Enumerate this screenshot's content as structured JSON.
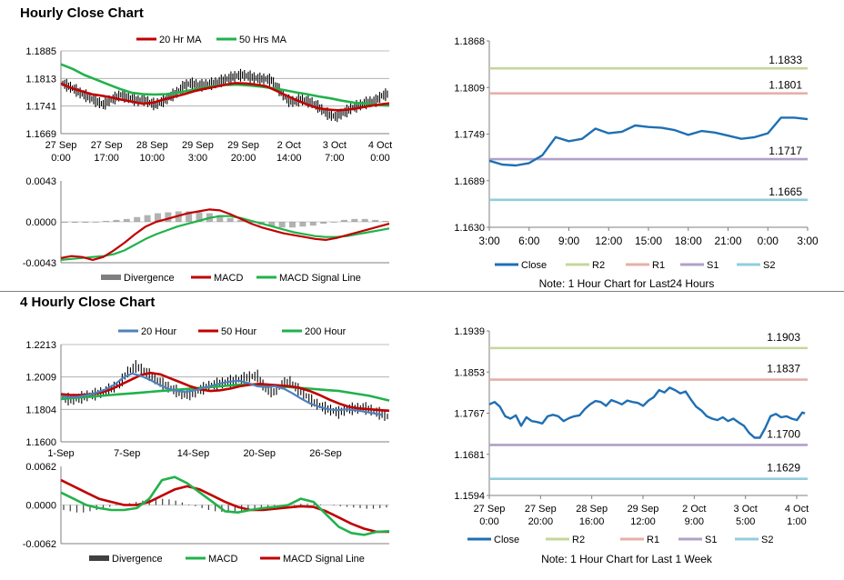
{
  "sections": [
    {
      "title": "Hourly Close Chart"
    },
    {
      "title": "4 Hourly Close Chart"
    }
  ],
  "chart_data": [
    {
      "id": "hourly-price",
      "type": "candlestick",
      "legend": [
        "20 Hr MA",
        "50 Hrs MA"
      ],
      "series_colors": {
        "20 Hr MA": "#c00000",
        "50 Hrs MA": "#21b24b",
        "price": "#000000"
      },
      "yticks": [
        "1.1885",
        "1.1813",
        "1.1741",
        "1.1669"
      ],
      "ylim": [
        1.1669,
        1.1885
      ],
      "xticks": [
        "27 Sep\n0:00",
        "27 Sep\n17:00",
        "28 Sep\n10:00",
        "29 Sep\n3:00",
        "29 Sep\n20:00",
        "2 Oct\n14:00",
        "3 Oct\n7:00",
        "4 Oct\n0:00"
      ],
      "grid": "horizontal",
      "price_y": [
        1.18,
        1.1793,
        1.1785,
        1.1775,
        1.1768,
        1.176,
        1.1752,
        1.1745,
        1.1755,
        1.1762,
        1.177,
        1.1765,
        1.176,
        1.1755,
        1.1758,
        1.175,
        1.1745,
        1.1752,
        1.176,
        1.177,
        1.178,
        1.1795,
        1.18,
        1.1797,
        1.1795,
        1.1798,
        1.18,
        1.1805,
        1.181,
        1.1815,
        1.182,
        1.1822,
        1.1819,
        1.1815,
        1.1812,
        1.1812,
        1.1808,
        1.179,
        1.177,
        1.1755,
        1.1752,
        1.1758,
        1.1755,
        1.175,
        1.174,
        1.1728,
        1.1718,
        1.1714,
        1.172,
        1.1728,
        1.1737,
        1.1742,
        1.1748,
        1.1752,
        1.1755,
        1.1768,
        1.1772
      ],
      "ma20": [
        1.18,
        1.1788,
        1.178,
        1.1772,
        1.1768,
        1.1763,
        1.1757,
        1.1752,
        1.1747,
        1.175,
        1.1758,
        1.1765,
        1.1772,
        1.178,
        1.1786,
        1.1791,
        1.1797,
        1.1801,
        1.18,
        1.1797,
        1.1793,
        1.1781,
        1.1768,
        1.1756,
        1.1745,
        1.1736,
        1.1732,
        1.173,
        1.1732,
        1.1736,
        1.1741,
        1.1745,
        1.1748
      ],
      "ma50": [
        1.185,
        1.1838,
        1.1822,
        1.181,
        1.1798,
        1.1786,
        1.1776,
        1.1772,
        1.1771,
        1.1772,
        1.1776,
        1.1782,
        1.1788,
        1.1793,
        1.1796,
        1.1797,
        1.1795,
        1.1792,
        1.1788,
        1.1783,
        1.1777,
        1.1772,
        1.1766,
        1.1761,
        1.1755,
        1.175,
        1.1747,
        1.1744,
        1.1742
      ]
    },
    {
      "id": "hourly-macd",
      "type": "line",
      "legend": [
        "Divergence",
        "MACD",
        "MACD Signal Line"
      ],
      "series_colors": {
        "Divergence": "#7f7f7f",
        "MACD": "#c00000",
        "MACD Signal Line": "#21b24b"
      },
      "yticks": [
        "0.0043",
        "0.0000",
        "-0.0043"
      ],
      "ylim": [
        -0.0043,
        0.0043
      ],
      "divergence": [
        -0.0001,
        -0.0001,
        -0.0001,
        0.0,
        0.0001,
        0.0002,
        0.0003,
        0.0005,
        0.0007,
        0.0009,
        0.001,
        0.0011,
        0.0011,
        0.001,
        0.0009,
        0.0007,
        0.0004,
        0.0002,
        -0.0001,
        -0.0003,
        -0.0005,
        -0.0006,
        -0.0006,
        -0.0005,
        -0.0004,
        -0.0002,
        0.0,
        0.0002,
        0.0003,
        0.0003,
        0.0002,
        0.0001
      ],
      "macd": [
        -0.0038,
        -0.0036,
        -0.0037,
        -0.004,
        -0.0037,
        -0.003,
        -0.0022,
        -0.0013,
        -0.0005,
        0.0,
        0.0003,
        0.0006,
        0.0009,
        0.0011,
        0.0013,
        0.0012,
        0.0008,
        0.0003,
        -0.0002,
        -0.0006,
        -0.0009,
        -0.0012,
        -0.0014,
        -0.0016,
        -0.0018,
        -0.0019,
        -0.0017,
        -0.0014,
        -0.0011,
        -0.0008,
        -0.0005,
        -0.0002
      ],
      "signal": [
        -0.004,
        -0.0039,
        -0.0038,
        -0.0037,
        -0.0036,
        -0.0034,
        -0.003,
        -0.0024,
        -0.0018,
        -0.0013,
        -0.0009,
        -0.0005,
        -0.0002,
        0.0001,
        0.0004,
        0.0006,
        0.0006,
        0.0004,
        0.0001,
        -0.0002,
        -0.0005,
        -0.0008,
        -0.0011,
        -0.0013,
        -0.0015,
        -0.0016,
        -0.0016,
        -0.0015,
        -0.0013,
        -0.0011,
        -0.0009,
        -0.0007
      ]
    },
    {
      "id": "hourly-levels",
      "type": "line",
      "legend": [
        "Close",
        "R2",
        "R1",
        "S1",
        "S2"
      ],
      "series_colors": {
        "Close": "#1f6fb4",
        "R2": "#c4d79b",
        "R1": "#e6b0a9",
        "S1": "#b1a0c7",
        "S2": "#92cddc"
      },
      "yticks": [
        "1.1868",
        "1.1809",
        "1.1749",
        "1.1689",
        "1.1630"
      ],
      "ylim": [
        1.163,
        1.1868
      ],
      "xticks": [
        "3:00",
        "6:00",
        "9:00",
        "12:00",
        "15:00",
        "18:00",
        "21:00",
        "0:00",
        "3:00"
      ],
      "x": [
        0,
        1,
        2,
        3,
        4,
        5,
        6,
        7,
        8,
        9,
        10,
        11,
        12,
        13,
        14,
        15,
        16,
        17,
        18,
        19,
        20,
        21,
        22,
        23,
        24
      ],
      "close": [
        1.1715,
        1.171,
        1.1709,
        1.1712,
        1.1722,
        1.1745,
        1.174,
        1.1743,
        1.1756,
        1.175,
        1.1752,
        1.176,
        1.1758,
        1.1757,
        1.1754,
        1.1748,
        1.1753,
        1.1751,
        1.1747,
        1.1743,
        1.1745,
        1.175,
        1.177,
        1.177,
        1.1768
      ],
      "levels": [
        {
          "name": "R2",
          "value": 1.1833,
          "label": "1.1833"
        },
        {
          "name": "R1",
          "value": 1.1801,
          "label": "1.1801"
        },
        {
          "name": "S1",
          "value": 1.1717,
          "label": "1.1717"
        },
        {
          "name": "S2",
          "value": 1.1665,
          "label": "1.1665"
        }
      ],
      "note": "Note: 1 Hour Chart for Last24 Hours"
    },
    {
      "id": "four-hourly-price",
      "type": "candlestick",
      "legend": [
        "20 Hour",
        "50 Hour",
        "200 Hour"
      ],
      "series_colors": {
        "20 Hour": "#4f81bd",
        "50 Hour": "#c00000",
        "200 Hour": "#21b24b",
        "price": "#000000"
      },
      "yticks": [
        "1.2213",
        "1.2009",
        "1.1804",
        "1.1600"
      ],
      "ylim": [
        1.16,
        1.2213
      ],
      "xticks": [
        "1-Sep",
        "7-Sep",
        "14-Sep",
        "20-Sep",
        "26-Sep"
      ],
      "grid": "horizontal",
      "price_y": [
        1.188,
        1.1865,
        1.1875,
        1.189,
        1.19,
        1.1915,
        1.1935,
        1.1965,
        1.204,
        1.2075,
        1.205,
        1.201,
        1.1975,
        1.1945,
        1.192,
        1.1895,
        1.1905,
        1.193,
        1.195,
        1.1965,
        1.1975,
        1.1985,
        1.1995,
        1.201,
        1.2015,
        1.193,
        1.1915,
        1.196,
        1.198,
        1.193,
        1.189,
        1.1845,
        1.182,
        1.18,
        1.1785,
        1.1805,
        1.181,
        1.1815,
        1.18,
        1.178,
        1.176
      ],
      "ma20": [
        1.189,
        1.188,
        1.1885,
        1.1895,
        1.191,
        1.193,
        1.196,
        1.2005,
        1.203,
        1.2015,
        1.199,
        1.196,
        1.1935,
        1.192,
        1.1915,
        1.1925,
        1.194,
        1.1955,
        1.197,
        1.198,
        1.1985,
        1.197,
        1.195,
        1.1945,
        1.195,
        1.1935,
        1.1905,
        1.187,
        1.184,
        1.182,
        1.1805,
        1.18,
        1.1805,
        1.18,
        1.179,
        1.178,
        1.177
      ],
      "ma50": [
        1.19,
        1.1895,
        1.1895,
        1.19,
        1.191,
        1.193,
        1.196,
        1.199,
        1.202,
        1.2035,
        1.2025,
        1.2,
        1.1975,
        1.195,
        1.193,
        1.192,
        1.1925,
        1.1935,
        1.195,
        1.196,
        1.1965,
        1.196,
        1.1955,
        1.195,
        1.194,
        1.192,
        1.1895,
        1.1865,
        1.184,
        1.182,
        1.181,
        1.1805,
        1.18,
        1.1795
      ],
      "ma200": [
        1.187,
        1.1875,
        1.188,
        1.1885,
        1.189,
        1.1895,
        1.19,
        1.1905,
        1.191,
        1.1915,
        1.192,
        1.1925,
        1.193,
        1.1935,
        1.194,
        1.1945,
        1.195,
        1.1955,
        1.196,
        1.1962,
        1.196,
        1.1955,
        1.195,
        1.1945,
        1.194,
        1.1935,
        1.193,
        1.1925,
        1.192,
        1.191,
        1.19,
        1.189,
        1.1875,
        1.186
      ]
    },
    {
      "id": "four-hourly-macd",
      "type": "line",
      "legend": [
        "Divergence",
        "MACD",
        "MACD Signal Line"
      ],
      "series_colors": {
        "Divergence": "#404040",
        "MACD": "#21b24b",
        "MACD Signal Line": "#c00000"
      },
      "yticks": [
        "0.0062",
        "0.0000",
        "-0.0062"
      ],
      "ylim": [
        -0.0062,
        0.0062
      ],
      "divergence": [
        -0.0008,
        -0.001,
        -0.0012,
        -0.0012,
        -0.001,
        -0.0008,
        -0.0005,
        -0.0003,
        -0.0001,
        0.0001,
        0.0003,
        0.0005,
        0.0007,
        0.0009,
        0.001,
        0.001,
        0.0009,
        0.0007,
        0.0004,
        0.0001,
        -0.0002,
        -0.0005,
        -0.0008,
        -0.001,
        -0.0011,
        -0.0012,
        -0.0012,
        -0.0011,
        -0.0009,
        -0.0007,
        -0.0005,
        -0.0003,
        -0.0002,
        -0.0001,
        0.0,
        0.0001,
        0.0002,
        0.0002,
        0.0002,
        0.0001,
        0.0,
        -0.0001,
        -0.0002,
        -0.0003,
        -0.0004,
        -0.0005,
        -0.0006,
        -0.0006,
        -0.0005,
        -0.0004
      ],
      "macd": [
        0.002,
        0.001,
        0.0,
        -0.0005,
        -0.0008,
        -0.0008,
        -0.0005,
        0.001,
        0.004,
        0.0045,
        0.0035,
        0.002,
        0.0005,
        -0.001,
        -0.0012,
        -0.0008,
        -0.0005,
        -0.0003,
        0.0,
        0.001,
        0.0005,
        -0.0015,
        -0.0035,
        -0.0045,
        -0.0048,
        -0.0043,
        -0.0042
      ],
      "signal": [
        0.004,
        0.003,
        0.002,
        0.001,
        0.0005,
        0.0,
        0.0,
        0.0005,
        0.0015,
        0.0025,
        0.003,
        0.0025,
        0.0015,
        0.0005,
        -0.0003,
        -0.0008,
        -0.0008,
        -0.0006,
        -0.0004,
        -0.0002,
        -0.0003,
        -0.001,
        -0.002,
        -0.003,
        -0.0038,
        -0.0043,
        -0.0043
      ]
    },
    {
      "id": "four-hourly-levels",
      "type": "line",
      "legend": [
        "Close",
        "R2",
        "R1",
        "S1",
        "S2"
      ],
      "series_colors": {
        "Close": "#1f6fb4",
        "R2": "#c4d79b",
        "R1": "#e6b0a9",
        "S1": "#b1a0c7",
        "S2": "#92cddc"
      },
      "yticks": [
        "1.1939",
        "1.1853",
        "1.1767",
        "1.1681",
        "1.1594"
      ],
      "ylim": [
        1.1594,
        1.1939
      ],
      "xticks": [
        "27 Sep\n0:00",
        "27 Sep\n20:00",
        "28 Sep\n16:00",
        "29 Sep\n12:00",
        "2 Oct\n9:00",
        "3 Oct\n5:00",
        "4 Oct\n1:00"
      ],
      "x_range": [
        0,
        120
      ],
      "close_points": [
        [
          0,
          1.1785
        ],
        [
          2,
          1.179
        ],
        [
          4,
          1.178
        ],
        [
          6,
          1.176
        ],
        [
          8,
          1.1755
        ],
        [
          10,
          1.1762
        ],
        [
          12,
          1.174
        ],
        [
          14,
          1.1758
        ],
        [
          16,
          1.175
        ],
        [
          18,
          1.1748
        ],
        [
          20,
          1.1745
        ],
        [
          22,
          1.176
        ],
        [
          24,
          1.1763
        ],
        [
          26,
          1.176
        ],
        [
          28,
          1.175
        ],
        [
          30,
          1.1756
        ],
        [
          32,
          1.176
        ],
        [
          34,
          1.1762
        ],
        [
          36,
          1.1775
        ],
        [
          38,
          1.1785
        ],
        [
          40,
          1.1792
        ],
        [
          42,
          1.179
        ],
        [
          44,
          1.1782
        ],
        [
          46,
          1.1794
        ],
        [
          48,
          1.179
        ],
        [
          50,
          1.1785
        ],
        [
          52,
          1.1793
        ],
        [
          54,
          1.179
        ],
        [
          56,
          1.1788
        ],
        [
          58,
          1.1782
        ],
        [
          60,
          1.1793
        ],
        [
          62,
          1.18
        ],
        [
          64,
          1.1815
        ],
        [
          66,
          1.181
        ],
        [
          68,
          1.182
        ],
        [
          70,
          1.1815
        ],
        [
          72,
          1.1808
        ],
        [
          74,
          1.1812
        ],
        [
          76,
          1.1795
        ],
        [
          78,
          1.178
        ],
        [
          80,
          1.1772
        ],
        [
          82,
          1.176
        ],
        [
          84,
          1.1755
        ],
        [
          86,
          1.1752
        ],
        [
          88,
          1.1758
        ],
        [
          90,
          1.175
        ],
        [
          92,
          1.1755
        ],
        [
          94,
          1.1747
        ],
        [
          96,
          1.174
        ],
        [
          98,
          1.1725
        ],
        [
          100,
          1.1715
        ],
        [
          102,
          1.1715
        ],
        [
          104,
          1.1735
        ],
        [
          106,
          1.176
        ],
        [
          108,
          1.1765
        ],
        [
          110,
          1.1758
        ],
        [
          112,
          1.176
        ],
        [
          114,
          1.1755
        ],
        [
          116,
          1.1752
        ],
        [
          118,
          1.1768
        ],
        [
          119,
          1.1766
        ]
      ],
      "levels": [
        {
          "name": "R2",
          "value": 1.1903,
          "label": "1.1903"
        },
        {
          "name": "R1",
          "value": 1.1837,
          "label": "1.1837"
        },
        {
          "name": "S1",
          "value": 1.17,
          "label": "1.1700"
        },
        {
          "name": "S2",
          "value": 1.1629,
          "label": "1.1629"
        }
      ],
      "note": "Note: 1 Hour Chart for Last 1 Week"
    }
  ]
}
